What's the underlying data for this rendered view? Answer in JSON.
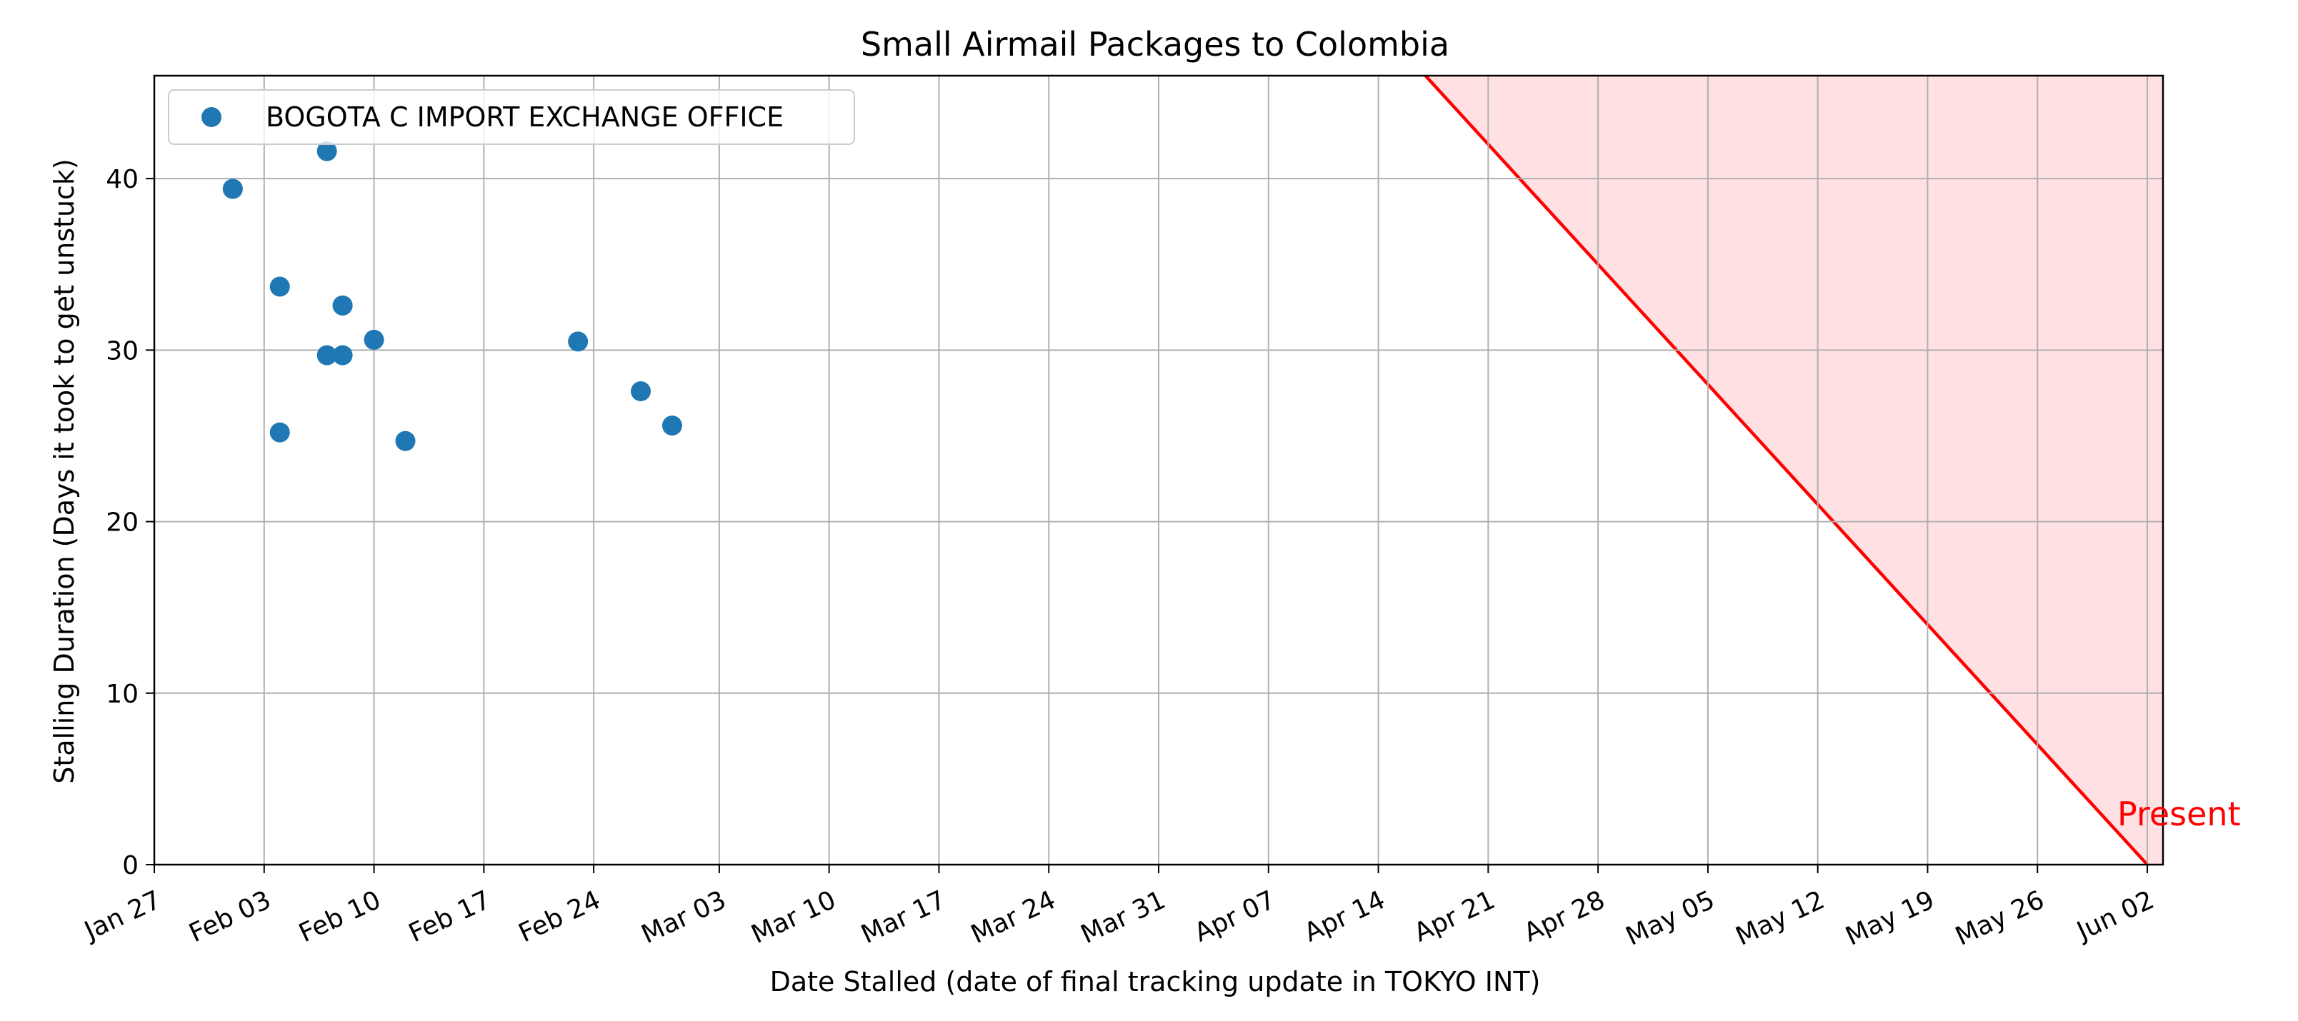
{
  "chart_data": {
    "type": "scatter",
    "title": "Small Airmail Packages to Colombia",
    "xlabel": "Date Stalled (date of final tracking update in TOKYO INT)",
    "ylabel": "Stalling Duration (Days it took to get unstuck)",
    "x_type": "date",
    "x_range": [
      "2024-01-27",
      "2024-06-03"
    ],
    "ylim": [
      0,
      46
    ],
    "grid": true,
    "legend_placement": "top-left",
    "x_ticks": [
      {
        "date": "2024-01-27",
        "label": "Jan 27"
      },
      {
        "date": "2024-02-03",
        "label": "Feb 03"
      },
      {
        "date": "2024-02-10",
        "label": "Feb 10"
      },
      {
        "date": "2024-02-17",
        "label": "Feb 17"
      },
      {
        "date": "2024-02-24",
        "label": "Feb 24"
      },
      {
        "date": "2024-03-03",
        "label": "Mar 03"
      },
      {
        "date": "2024-03-10",
        "label": "Mar 10"
      },
      {
        "date": "2024-03-17",
        "label": "Mar 17"
      },
      {
        "date": "2024-03-24",
        "label": "Mar 24"
      },
      {
        "date": "2024-03-31",
        "label": "Mar 31"
      },
      {
        "date": "2024-04-07",
        "label": "Apr 07"
      },
      {
        "date": "2024-04-14",
        "label": "Apr 14"
      },
      {
        "date": "2024-04-21",
        "label": "Apr 21"
      },
      {
        "date": "2024-04-28",
        "label": "Apr 28"
      },
      {
        "date": "2024-05-05",
        "label": "May 05"
      },
      {
        "date": "2024-05-12",
        "label": "May 12"
      },
      {
        "date": "2024-05-19",
        "label": "May 19"
      },
      {
        "date": "2024-05-26",
        "label": "May 26"
      },
      {
        "date": "2024-06-02",
        "label": "Jun 02"
      }
    ],
    "y_ticks": [
      0,
      10,
      20,
      30,
      40
    ],
    "series": [
      {
        "name": "BOGOTA C IMPORT EXCHANGE OFFICE",
        "color": "#1f77b4",
        "points": [
          {
            "x": "2024-02-01",
            "y": 39.4
          },
          {
            "x": "2024-02-01",
            "y": 39.4
          },
          {
            "x": "2024-02-04",
            "y": 33.7
          },
          {
            "x": "2024-02-04",
            "y": 25.2
          },
          {
            "x": "2024-02-07",
            "y": 41.6
          },
          {
            "x": "2024-02-07",
            "y": 29.7
          },
          {
            "x": "2024-02-08",
            "y": 29.7
          },
          {
            "x": "2024-02-08",
            "y": 32.6
          },
          {
            "x": "2024-02-08",
            "y": 32.6
          },
          {
            "x": "2024-02-10",
            "y": 30.6
          },
          {
            "x": "2024-02-12",
            "y": 24.7
          },
          {
            "x": "2024-02-23",
            "y": 30.5
          },
          {
            "x": "2024-02-27",
            "y": 27.6
          },
          {
            "x": "2024-02-29",
            "y": 25.6
          }
        ]
      }
    ],
    "reference_line": {
      "color": "#ff0000",
      "fill_color": "#ffe0e3",
      "present_date": "2024-06-02",
      "slope_days_per_day": -1,
      "annotation": "Present"
    }
  }
}
